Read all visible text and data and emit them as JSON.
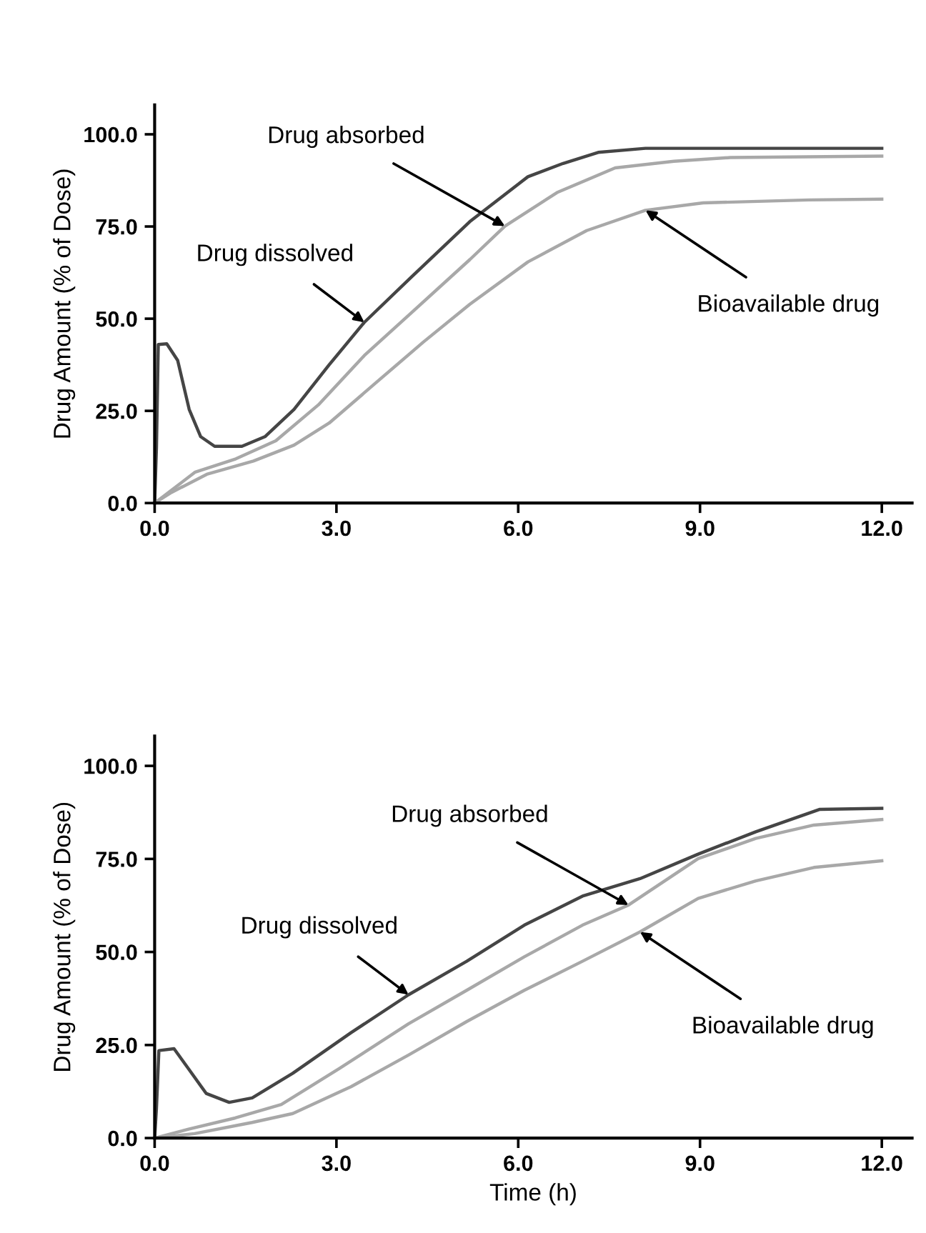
{
  "chart_data": [
    {
      "type": "line",
      "ylabel": "Drug Amount (% of Dose)",
      "xlim": [
        0,
        12.5
      ],
      "ylim": [
        0,
        108
      ],
      "xticks": [
        {
          "value": 0,
          "label": "0.0"
        },
        {
          "value": 3,
          "label": "3.0"
        },
        {
          "value": 6,
          "label": "6.0"
        },
        {
          "value": 9,
          "label": "9.0"
        },
        {
          "value": 12,
          "label": "12.0"
        }
      ],
      "yticks": [
        {
          "value": 0,
          "label": "0.0"
        },
        {
          "value": 25,
          "label": "25.0"
        },
        {
          "value": 50,
          "label": "50.0"
        },
        {
          "value": 75,
          "label": "75.0"
        },
        {
          "value": 100,
          "label": "100.0"
        }
      ],
      "grid": false,
      "legend": false,
      "series": [
        {
          "color": "#454545",
          "x": [
            0,
            0.03,
            0.06,
            0.2,
            0.38,
            0.57,
            0.76,
            0.99,
            1.44,
            1.82,
            2.3,
            2.88,
            3.46,
            4.23,
            5.2,
            6.16,
            6.74,
            7.32,
            8.1,
            12
          ],
          "values": [
            0,
            15,
            43,
            43.2,
            38.7,
            25.4,
            18,
            15.4,
            15.4,
            18,
            25.4,
            37.5,
            49,
            61.2,
            76.3,
            88.5,
            92.1,
            95.1,
            96.2,
            96.2
          ]
        },
        {
          "color": "#a8a8a8",
          "x": [
            0,
            0.67,
            1.34,
            2.0,
            2.7,
            3.46,
            4.23,
            5.2,
            5.78,
            6.64,
            7.6,
            8.57,
            9.5,
            12
          ],
          "values": [
            0,
            8.4,
            12,
            16.9,
            26.6,
            40,
            51.5,
            66,
            75.1,
            84.2,
            90.9,
            92.7,
            93.7,
            94.1
          ]
        },
        {
          "color": "#a8a8a8",
          "x": [
            0,
            0.28,
            0.86,
            1.63,
            2.3,
            2.88,
            3.65,
            4.43,
            5.2,
            6.16,
            7.13,
            8.1,
            9.05,
            10.8,
            12
          ],
          "values": [
            0,
            2.9,
            7.8,
            11.4,
            15.7,
            21.7,
            32.6,
            43.6,
            53.9,
            65.4,
            73.9,
            79.4,
            81.4,
            82.2,
            82.4
          ]
        }
      ],
      "annotations": [
        {
          "text": "Drug dissolved",
          "x": 3.46,
          "y": 49
        },
        {
          "text": "Drug absorbed",
          "x": 5.78,
          "y": 75.1
        },
        {
          "text": "Bioavailable drug",
          "x": 8.1,
          "y": 79.4
        }
      ]
    },
    {
      "type": "line",
      "xlabel": "Time (h)",
      "ylabel": "Drug Amount (% of Dose)",
      "xlim": [
        0,
        12.5
      ],
      "ylim": [
        0,
        108
      ],
      "xticks": [
        {
          "value": 0,
          "label": "0.0"
        },
        {
          "value": 3,
          "label": "3.0"
        },
        {
          "value": 6,
          "label": "6.0"
        },
        {
          "value": 9,
          "label": "9.0"
        },
        {
          "value": 12,
          "label": "12.0"
        }
      ],
      "yticks": [
        {
          "value": 0,
          "label": "0.0"
        },
        {
          "value": 25,
          "label": "25.0"
        },
        {
          "value": 50,
          "label": "50.0"
        },
        {
          "value": 75,
          "label": "75.0"
        },
        {
          "value": 100,
          "label": "100.0"
        }
      ],
      "grid": false,
      "legend": false,
      "series": [
        {
          "color": "#454545",
          "x": [
            0,
            0.03,
            0.07,
            0.32,
            0.56,
            0.85,
            1.23,
            1.61,
            2.28,
            3.24,
            4.19,
            5.15,
            6.1,
            7.06,
            8.01,
            8.97,
            9.92,
            10.97,
            12
          ],
          "values": [
            0,
            8,
            23.5,
            24,
            18.6,
            12,
            9.6,
            10.8,
            17.4,
            28.3,
            38.5,
            47.5,
            57.2,
            65,
            69.7,
            76.3,
            82.3,
            88.3,
            88.6
          ]
        },
        {
          "color": "#a8a8a8",
          "x": [
            0,
            0.56,
            1.33,
            2.09,
            3.05,
            4.19,
            5.15,
            6.1,
            7.06,
            7.82,
            8.97,
            9.92,
            10.88,
            12
          ],
          "values": [
            0,
            2.4,
            5.4,
            9,
            18.7,
            30.7,
            39.7,
            48.7,
            57.2,
            62.6,
            75.1,
            80.5,
            84.1,
            85.6
          ]
        },
        {
          "color": "#a8a8a8",
          "x": [
            0,
            0.66,
            1.61,
            2.28,
            3.24,
            4.19,
            5.15,
            6.1,
            7.06,
            8.01,
            8.97,
            9.92,
            10.88,
            12
          ],
          "values": [
            0,
            1.2,
            4.2,
            6.6,
            13.8,
            22.3,
            31.3,
            39.7,
            47.5,
            55.4,
            64.4,
            69.1,
            72.7,
            74.5
          ]
        }
      ],
      "annotations": [
        {
          "text": "Drug dissolved",
          "x": 4.19,
          "y": 38.5
        },
        {
          "text": "Drug absorbed",
          "x": 7.82,
          "y": 62.6
        },
        {
          "text": "Bioavailable drug",
          "x": 8.01,
          "y": 55.4
        }
      ]
    }
  ]
}
